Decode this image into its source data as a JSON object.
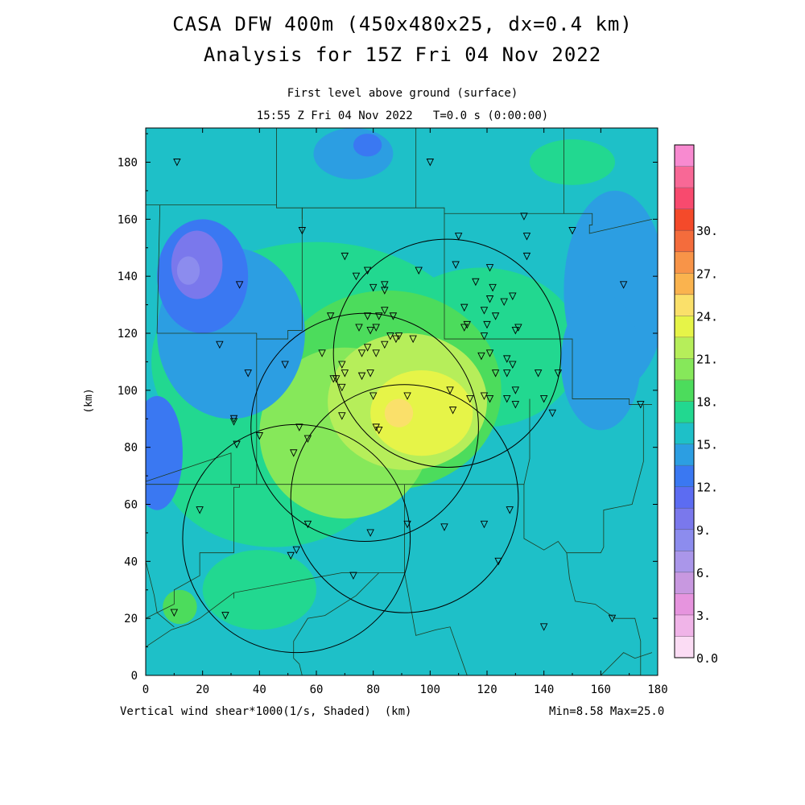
{
  "title": {
    "line1": "CASA DFW 400m (450x480x25, dx=0.4 km)",
    "line2": "Analysis for 15Z Fri 04 Nov 2022"
  },
  "subtitle": {
    "level": "First level above ground (surface)",
    "time": "15:55 Z Fri 04 Nov 2022   T=0.0 s (0:00:00)"
  },
  "footer": {
    "field": "Vertical wind shear*1000(1/s, Shaded)  (km)",
    "stats": "Min=8.58 Max=25.0"
  },
  "chart_data": {
    "type": "heatmap",
    "field": "Vertical wind shear*1000(1/s, Shaded)",
    "xlabel": "",
    "ylabel": "(km)",
    "xlim": [
      0,
      180
    ],
    "ylim": [
      0,
      192
    ],
    "x_ticks": [
      0,
      20,
      40,
      60,
      80,
      100,
      120,
      140,
      160,
      180
    ],
    "y_ticks": [
      0,
      20,
      40,
      60,
      80,
      100,
      120,
      140,
      160,
      180
    ],
    "min": 8.58,
    "max": 25.0,
    "colorbar": {
      "levels": [
        0,
        1.5,
        3,
        4.5,
        6,
        7.5,
        9,
        10.5,
        12,
        13.5,
        15,
        16.5,
        18,
        19.5,
        21,
        22.5,
        24,
        25.5,
        27,
        28.5,
        30
      ],
      "labels": [
        "0.0",
        "3.",
        "6.",
        "9.",
        "12.",
        "15.",
        "18.",
        "21.",
        "24.",
        "27.",
        "30."
      ],
      "colors": [
        "#fbdcf4",
        "#f0b4e8",
        "#e694de",
        "#c898e0",
        "#aa96ea",
        "#8c8cee",
        "#7a78ec",
        "#5c6cf2",
        "#3a78f2",
        "#2c9ee2",
        "#1ec0c8",
        "#22d890",
        "#4cdc5c",
        "#86e85a",
        "#b6ee5a",
        "#e6f448",
        "#fae06a",
        "#fab34e",
        "#f89448",
        "#f46c3c",
        "#f44a2a",
        "#f84a6e",
        "#f86896",
        "#f88ad0"
      ]
    },
    "blobs": [
      {
        "x": 60,
        "y": 110,
        "rx": 58,
        "ry": 42,
        "v": 17.2
      },
      {
        "x": 45,
        "y": 75,
        "rx": 40,
        "ry": 30,
        "v": 17.0
      },
      {
        "x": 118,
        "y": 115,
        "rx": 35,
        "ry": 28,
        "v": 16.8
      },
      {
        "x": 85,
        "y": 100,
        "rx": 40,
        "ry": 35,
        "v": 18.8
      },
      {
        "x": 70,
        "y": 85,
        "rx": 30,
        "ry": 30,
        "v": 19.8
      },
      {
        "x": 92,
        "y": 96,
        "rx": 28,
        "ry": 24,
        "v": 21.0
      },
      {
        "x": 97,
        "y": 92,
        "rx": 18,
        "ry": 15,
        "v": 22.6
      },
      {
        "x": 103,
        "y": 97,
        "rx": 7,
        "ry": 7,
        "v": 23.6
      },
      {
        "x": 89,
        "y": 92,
        "rx": 5,
        "ry": 5,
        "v": 24.4
      },
      {
        "x": 30,
        "y": 120,
        "rx": 26,
        "ry": 30,
        "v": 14.6
      },
      {
        "x": 20,
        "y": 140,
        "rx": 16,
        "ry": 20,
        "v": 12.0
      },
      {
        "x": 18,
        "y": 144,
        "rx": 9,
        "ry": 12,
        "v": 9.2
      },
      {
        "x": 15,
        "y": 142,
        "rx": 4,
        "ry": 5,
        "v": 8.6
      },
      {
        "x": 4,
        "y": 78,
        "rx": 9,
        "ry": 20,
        "v": 12.6
      },
      {
        "x": 165,
        "y": 135,
        "rx": 18,
        "ry": 35,
        "v": 14.6
      },
      {
        "x": 73,
        "y": 183,
        "rx": 14,
        "ry": 9,
        "v": 14.2
      },
      {
        "x": 78,
        "y": 186,
        "rx": 5,
        "ry": 4,
        "v": 13.0
      },
      {
        "x": 150,
        "y": 180,
        "rx": 15,
        "ry": 8,
        "v": 17.6
      },
      {
        "x": 160,
        "y": 110,
        "rx": 14,
        "ry": 24,
        "v": 14.8
      },
      {
        "x": 12,
        "y": 24,
        "rx": 6,
        "ry": 6,
        "v": 19.4
      },
      {
        "x": 40,
        "y": 30,
        "rx": 20,
        "ry": 14,
        "v": 16.6
      }
    ],
    "radar_circles": [
      {
        "x": 106,
        "y": 113,
        "r": 40
      },
      {
        "x": 77,
        "y": 87,
        "r": 40
      },
      {
        "x": 53,
        "y": 48,
        "r": 40
      },
      {
        "x": 91,
        "y": 62,
        "r": 40
      }
    ],
    "stations": [
      [
        11,
        180
      ],
      [
        100,
        180
      ],
      [
        55,
        156
      ],
      [
        110,
        154
      ],
      [
        133,
        161
      ],
      [
        134,
        154
      ],
      [
        150,
        156
      ],
      [
        70,
        147
      ],
      [
        134,
        147
      ],
      [
        78,
        142
      ],
      [
        109,
        144
      ],
      [
        121,
        143
      ],
      [
        96,
        142
      ],
      [
        74,
        140
      ],
      [
        33,
        137
      ],
      [
        80,
        136
      ],
      [
        84,
        137
      ],
      [
        116,
        138
      ],
      [
        84,
        135
      ],
      [
        122,
        136
      ],
      [
        168,
        137
      ],
      [
        121,
        132
      ],
      [
        112,
        129
      ],
      [
        119,
        128
      ],
      [
        126,
        131
      ],
      [
        129,
        133
      ],
      [
        84,
        128
      ],
      [
        82,
        126
      ],
      [
        78,
        126
      ],
      [
        65,
        126
      ],
      [
        87,
        126
      ],
      [
        123,
        126
      ],
      [
        113,
        123
      ],
      [
        81,
        122
      ],
      [
        75,
        122
      ],
      [
        79,
        121
      ],
      [
        120,
        123
      ],
      [
        112,
        122
      ],
      [
        119,
        119
      ],
      [
        130,
        121
      ],
      [
        131,
        122
      ],
      [
        86,
        119
      ],
      [
        89,
        119
      ],
      [
        88,
        118
      ],
      [
        94,
        118
      ],
      [
        84,
        116
      ],
      [
        81,
        113
      ],
      [
        78,
        115
      ],
      [
        26,
        116
      ],
      [
        62,
        113
      ],
      [
        76,
        113
      ],
      [
        121,
        113
      ],
      [
        118,
        112
      ],
      [
        127,
        111
      ],
      [
        69,
        109
      ],
      [
        123,
        106
      ],
      [
        49,
        109
      ],
      [
        127,
        106
      ],
      [
        129,
        109
      ],
      [
        138,
        106
      ],
      [
        145,
        106
      ],
      [
        79,
        106
      ],
      [
        36,
        106
      ],
      [
        70,
        106
      ],
      [
        76,
        105
      ],
      [
        66,
        104
      ],
      [
        67,
        104
      ],
      [
        69,
        101
      ],
      [
        107,
        100
      ],
      [
        130,
        100
      ],
      [
        127,
        97
      ],
      [
        92,
        98
      ],
      [
        80,
        98
      ],
      [
        114,
        97
      ],
      [
        119,
        98
      ],
      [
        140,
        97
      ],
      [
        130,
        95
      ],
      [
        174,
        95
      ],
      [
        121,
        97
      ],
      [
        108,
        93
      ],
      [
        143,
        92
      ],
      [
        69,
        91
      ],
      [
        31,
        90
      ],
      [
        81,
        87
      ],
      [
        31,
        89
      ],
      [
        82,
        86
      ],
      [
        54,
        87
      ],
      [
        57,
        83
      ],
      [
        32,
        81
      ],
      [
        40,
        84
      ],
      [
        52,
        78
      ],
      [
        19,
        58
      ],
      [
        128,
        58
      ],
      [
        57,
        53
      ],
      [
        92,
        53
      ],
      [
        105,
        52
      ],
      [
        119,
        53
      ],
      [
        79,
        50
      ],
      [
        53,
        44
      ],
      [
        51,
        42
      ],
      [
        124,
        40
      ],
      [
        73,
        35
      ],
      [
        10,
        22
      ],
      [
        28,
        21
      ],
      [
        140,
        17
      ],
      [
        164,
        20
      ]
    ],
    "county_lines": [
      [
        [
          0,
          165
        ],
        [
          46,
          165
        ],
        [
          46,
          180
        ],
        [
          46,
          192
        ]
      ],
      [
        [
          46,
          165
        ],
        [
          46,
          164
        ],
        [
          55,
          164
        ],
        [
          55,
          160
        ]
      ],
      [
        [
          55,
          164
        ],
        [
          95,
          164
        ],
        [
          95,
          192
        ]
      ],
      [
        [
          95,
          164
        ],
        [
          105,
          164
        ],
        [
          105,
          162
        ],
        [
          147,
          162
        ],
        [
          147,
          192
        ]
      ],
      [
        [
          147,
          162
        ],
        [
          157,
          162
        ],
        [
          157,
          158
        ],
        [
          156,
          158
        ],
        [
          156,
          155
        ],
        [
          178,
          160
        ]
      ],
      [
        [
          105,
          162
        ],
        [
          105,
          118
        ],
        [
          150,
          118
        ],
        [
          150,
          97
        ],
        [
          170,
          97
        ],
        [
          170,
          95
        ],
        [
          178,
          95
        ]
      ],
      [
        [
          5,
          165
        ],
        [
          4,
          120
        ],
        [
          39,
          120
        ],
        [
          39,
          118
        ],
        [
          50,
          118
        ],
        [
          50,
          121
        ],
        [
          55,
          121
        ],
        [
          55,
          164
        ]
      ],
      [
        [
          39,
          118
        ],
        [
          39,
          67
        ],
        [
          30,
          67
        ],
        [
          30,
          78
        ],
        [
          0,
          68
        ]
      ],
      [
        [
          0,
          67
        ],
        [
          33,
          67
        ],
        [
          33,
          66
        ],
        [
          31,
          66
        ],
        [
          31,
          43
        ],
        [
          19,
          43
        ],
        [
          19,
          35
        ],
        [
          10,
          30
        ],
        [
          10,
          25
        ],
        [
          0,
          20
        ]
      ],
      [
        [
          39,
          67
        ],
        [
          133,
          67
        ],
        [
          135,
          76
        ],
        [
          135,
          97
        ]
      ],
      [
        [
          91,
          67
        ],
        [
          91,
          60
        ],
        [
          91,
          36
        ],
        [
          82,
          36
        ],
        [
          69,
          36
        ],
        [
          31,
          29
        ],
        [
          31,
          27
        ]
      ],
      [
        [
          133,
          67
        ],
        [
          133,
          48
        ],
        [
          140,
          44
        ],
        [
          145,
          47
        ],
        [
          148,
          43
        ],
        [
          160,
          43
        ],
        [
          161,
          45
        ],
        [
          161,
          58
        ],
        [
          171,
          60
        ],
        [
          175,
          75
        ],
        [
          175,
          95
        ]
      ],
      [
        [
          148,
          43
        ],
        [
          149,
          34
        ],
        [
          151,
          26
        ],
        [
          158,
          25
        ],
        [
          165,
          20
        ],
        [
          172,
          20
        ],
        [
          174,
          12
        ],
        [
          174,
          0
        ]
      ],
      [
        [
          31,
          29
        ],
        [
          19,
          20
        ],
        [
          15,
          18
        ],
        [
          9,
          16
        ],
        [
          0,
          10
        ]
      ],
      [
        [
          82,
          36
        ],
        [
          74,
          28
        ],
        [
          63,
          21
        ],
        [
          57,
          20
        ],
        [
          52,
          12
        ],
        [
          52,
          6
        ],
        [
          54,
          4
        ],
        [
          55,
          0
        ]
      ],
      [
        [
          91,
          36
        ],
        [
          95,
          14
        ],
        [
          102,
          16
        ],
        [
          107,
          17
        ],
        [
          113,
          0
        ]
      ],
      [
        [
          160,
          0
        ],
        [
          168,
          8
        ],
        [
          172,
          6
        ],
        [
          178,
          8
        ]
      ],
      [
        [
          0,
          40
        ],
        [
          2,
          32
        ],
        [
          3,
          28
        ],
        [
          4,
          22
        ],
        [
          10,
          17
        ]
      ]
    ]
  }
}
